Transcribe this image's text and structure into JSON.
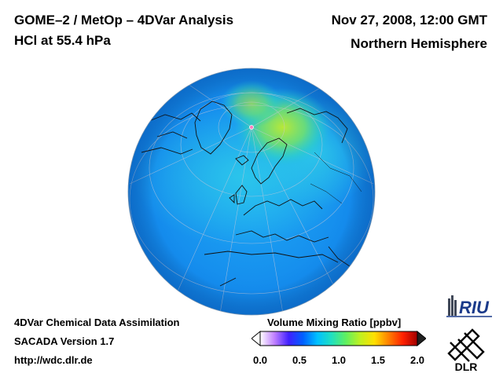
{
  "header": {
    "title": "GOME–2 / MetOp – 4DVar Analysis",
    "subtitle": "HCl at 55.4 hPa",
    "date": "Nov 27, 2008, 12:00 GMT",
    "region": "Northern Hemisphere"
  },
  "footer": {
    "line1": "4DVar Chemical Data Assimilation",
    "line2": "SACADA Version 1.7",
    "line3": "http://wdc.dlr.de"
  },
  "colorbar": {
    "title": "Volume Mixing Ratio [ppbv]",
    "ticks": [
      "0.0",
      "0.5",
      "1.0",
      "1.5",
      "2.0"
    ],
    "min": 0.0,
    "max": 2.0,
    "colors": [
      "#ffffff",
      "#c080ff",
      "#4020ff",
      "#0060ff",
      "#00c0ff",
      "#20e0c0",
      "#60f060",
      "#c0f020",
      "#ffe000",
      "#ff8000",
      "#ff2000",
      "#a00000"
    ]
  },
  "logos": {
    "riu": "RIU",
    "dlr": "DLR"
  },
  "map": {
    "projection": "orthographic",
    "hemisphere": "Northern Hemisphere",
    "ocean_color": "#1a8ef0",
    "max_color": "#9ae040"
  }
}
